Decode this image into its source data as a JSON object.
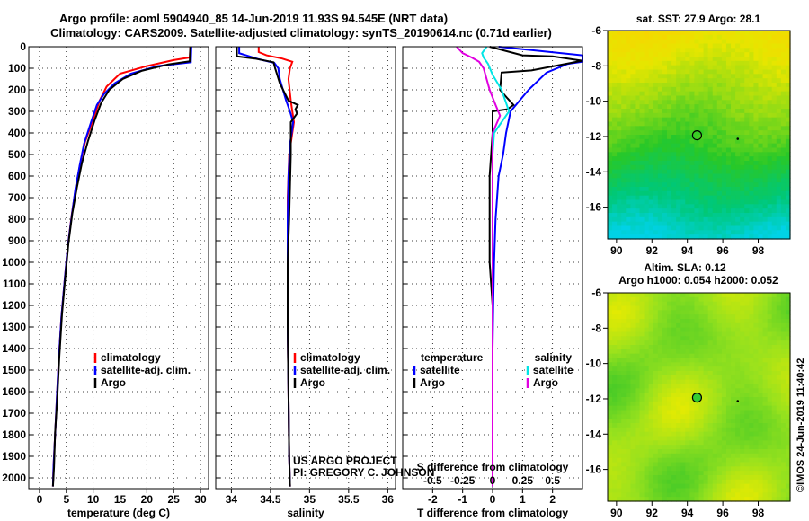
{
  "header": {
    "line1": "Argo profile: aoml 5904940_85 14-Jun-2019 11.93S 94.545E (NRT data)",
    "line2": "Climatology: CARS2009. Satellite-adjusted climatology: synTS_20190614.nc (0.71d earlier)"
  },
  "colors": {
    "climatology": "#ff0000",
    "satellite": "#0000ff",
    "argo": "#000000",
    "salinity_satellite": "#00e5e5",
    "salinity_argo": "#e000e0"
  },
  "pressure_axis": {
    "min": 0,
    "max": 2050,
    "ticks": [
      0,
      100,
      200,
      300,
      400,
      500,
      600,
      700,
      800,
      900,
      1000,
      1100,
      1200,
      1300,
      1400,
      1500,
      1600,
      1700,
      1800,
      1900,
      2000
    ]
  },
  "chart_data": [
    {
      "id": "temperature",
      "type": "line",
      "xlabel": "temperature (deg C)",
      "xlim": [
        -2,
        31.5
      ],
      "xticks": [
        0,
        5,
        10,
        15,
        20,
        25,
        30
      ],
      "ylim": [
        0,
        2050
      ],
      "series": [
        {
          "name": "climatology",
          "color_key": "climatology",
          "x": [
            28.1,
            28.0,
            25,
            20,
            15,
            12.5,
            11.2,
            10.0,
            8.5,
            7.6,
            6.8,
            6.0,
            5.3,
            4.7,
            4.1,
            3.6,
            3.2,
            2.9,
            2.6,
            2.5
          ],
          "y": [
            0,
            50,
            62,
            90,
            125,
            185,
            250,
            340,
            440,
            540,
            650,
            780,
            920,
            1080,
            1250,
            1450,
            1650,
            1800,
            1950,
            2040
          ]
        },
        {
          "name": "satellite-adj. clim.",
          "color_key": "satellite",
          "x": [
            28.3,
            28.2,
            22,
            17,
            14,
            12,
            10.7,
            9.6,
            8.3,
            7.5,
            6.7,
            6.0,
            5.3,
            4.7,
            4.1,
            3.6,
            3.2,
            2.9,
            2.6,
            2.5
          ],
          "y": [
            0,
            72,
            90,
            125,
            170,
            220,
            270,
            350,
            450,
            550,
            660,
            785,
            920,
            1080,
            1250,
            1450,
            1650,
            1800,
            1950,
            2040
          ]
        },
        {
          "name": "Argo",
          "color_key": "argo",
          "x": [
            28.1,
            28.0,
            24,
            19,
            15.5,
            13,
            11.5,
            10.3,
            9.0,
            7.9,
            7.0,
            6.1,
            5.4,
            4.8,
            4.2,
            3.7,
            3.3,
            2.9,
            2.7,
            2.5
          ],
          "y": [
            0,
            68,
            82,
            112,
            150,
            200,
            260,
            340,
            440,
            540,
            650,
            775,
            910,
            1070,
            1240,
            1440,
            1640,
            1790,
            1950,
            2040
          ]
        }
      ],
      "legend": [
        "climatology",
        "satellite-adj. clim.",
        "Argo"
      ]
    },
    {
      "id": "salinity",
      "type": "line",
      "xlabel": "salinity",
      "xlim": [
        33.8,
        36.1
      ],
      "xticks": [
        34,
        34.5,
        35,
        35.5,
        36
      ],
      "xtick_labels": [
        "34",
        "34.5",
        "35",
        "35.5",
        "36"
      ],
      "ylim": [
        0,
        2050
      ],
      "series": [
        {
          "name": "climatology",
          "color_key": "climatology",
          "x": [
            34.35,
            34.35,
            34.45,
            34.65,
            34.78,
            34.75,
            34.73,
            34.76,
            34.78,
            34.8,
            34.78,
            34.74,
            34.72,
            34.72,
            34.72,
            34.73,
            34.74,
            34.75
          ],
          "y": [
            0,
            25,
            40,
            55,
            70,
            100,
            150,
            250,
            300,
            350,
            400,
            500,
            700,
            1000,
            1300,
            1600,
            1900,
            2040
          ]
        },
        {
          "name": "satellite-adj. clim.",
          "color_key": "satellite",
          "x": [
            34.1,
            34.1,
            34.35,
            34.55,
            34.6,
            34.62,
            34.7,
            34.75,
            34.79,
            34.78,
            34.75,
            34.73,
            34.72,
            34.72,
            34.72,
            34.73,
            34.74,
            34.75
          ],
          "y": [
            0,
            30,
            58,
            75,
            100,
            150,
            250,
            300,
            350,
            380,
            450,
            600,
            800,
            1000,
            1300,
            1600,
            1900,
            2040
          ]
        },
        {
          "name": "Argo",
          "color_key": "argo",
          "x": [
            34.07,
            34.07,
            34.3,
            34.54,
            34.56,
            34.62,
            34.73,
            34.85,
            34.82,
            34.84,
            34.76,
            34.76,
            34.74,
            34.72,
            34.72,
            34.73,
            34.74,
            34.75
          ],
          "y": [
            0,
            45,
            55,
            72,
            100,
            170,
            250,
            270,
            290,
            310,
            350,
            500,
            800,
            1000,
            1300,
            1600,
            1900,
            2040
          ]
        }
      ],
      "legend": [
        "climatology",
        "satellite-adj. clim.",
        "Argo"
      ]
    },
    {
      "id": "differences",
      "type": "line",
      "xlabel": "T difference from climatology",
      "xlabel_top": "S difference from climatology",
      "xlim": [
        -3,
        3
      ],
      "xticks": [
        -2,
        -1,
        0,
        1,
        2
      ],
      "xtick_labels": [
        "-2",
        "-1",
        "0",
        "1",
        "2"
      ],
      "top_ticks": [
        -0.5,
        -0.25,
        0,
        0.25,
        0.5
      ],
      "top_tick_labels": [
        "-0.5",
        "-0.25",
        "0",
        "0.25",
        "0.5"
      ],
      "top_scale": 4,
      "ylim": [
        0,
        2050
      ],
      "series": [
        {
          "name": "temperature satellite",
          "color_key": "satellite",
          "x": [
            0.2,
            3.0,
            3.0,
            3.0,
            2.5,
            1.8,
            1.2,
            0.6,
            0.45,
            0.35,
            0.2,
            0.1,
            0.05,
            0.02,
            0.0,
            0.0,
            0.0,
            0.0
          ],
          "y": [
            0,
            40,
            60,
            70,
            80,
            120,
            200,
            300,
            400,
            500,
            600,
            800,
            1000,
            1200,
            1400,
            1600,
            1800,
            2040
          ]
        },
        {
          "name": "temperature Argo",
          "color_key": "argo",
          "x": [
            -0.1,
            1.0,
            2.0,
            3.0,
            1.3,
            0.3,
            0.25,
            0.5,
            0.7,
            0.5,
            0.0,
            0.0,
            -0.1,
            -0.1,
            0.0,
            0.0,
            0.0,
            0.0,
            0.0
          ],
          "y": [
            0,
            40,
            45,
            65,
            110,
            120,
            200,
            240,
            270,
            290,
            300,
            400,
            600,
            1000,
            1200,
            1400,
            1600,
            1800,
            2040
          ]
        },
        {
          "name": "salinity satellite",
          "color_key": "salinity_satellite",
          "x": [
            -0.2,
            -0.35,
            -0.3,
            -0.15,
            0.0,
            0.3,
            0.55,
            0.3,
            0.05,
            0.0,
            0.0,
            0.0,
            0.0,
            0.0,
            0.0
          ],
          "y": [
            0,
            30,
            50,
            80,
            130,
            200,
            300,
            350,
            400,
            500,
            800,
            1100,
            1400,
            1700,
            2040
          ]
        },
        {
          "name": "salinity Argo",
          "color_key": "salinity_argo",
          "x": [
            -1.2,
            -1.0,
            -0.7,
            -0.45,
            -0.3,
            -0.1,
            0.1,
            0.25,
            0.0,
            0.0,
            0.0,
            0.0,
            0.0,
            0.0
          ],
          "y": [
            0,
            30,
            50,
            70,
            100,
            200,
            270,
            320,
            400,
            600,
            900,
            1300,
            1700,
            2040
          ]
        }
      ],
      "legend_temperature_title": "temperature",
      "legend_salinity_title": "salinity",
      "legend_temperature": [
        "satellite",
        "Argo"
      ],
      "legend_salinity": [
        "satellite",
        "Argo"
      ]
    },
    {
      "id": "sst_map",
      "type": "heatmap",
      "title": "sat. SST: 27.9 Argo: 28.1",
      "xlim": [
        89.5,
        99.8
      ],
      "ylim": [
        -17.8,
        -6
      ],
      "xticks": [
        90,
        92,
        94,
        96,
        98
      ],
      "yticks": [
        -6,
        -8,
        -10,
        -12,
        -14,
        -16
      ],
      "profile_location": {
        "lon": 94.545,
        "lat": -11.93
      }
    },
    {
      "id": "sla_map",
      "type": "heatmap",
      "title_line1": "Altim. SLA: 0.12",
      "title_line2": "Argo h1000: 0.054 h2000: 0.052",
      "xlim": [
        89.5,
        99.8
      ],
      "ylim": [
        -17.8,
        -6
      ],
      "xticks": [
        90,
        92,
        94,
        96,
        98
      ],
      "yticks": [
        -6,
        -8,
        -10,
        -12,
        -14,
        -16
      ],
      "profile_location": {
        "lon": 94.545,
        "lat": -11.93
      }
    }
  ],
  "footer": {
    "project": "US ARGO PROJECT",
    "pi": "PI: GREGORY C. JOHNSON",
    "credit": "©IMOS 24-Jun-2019 11:40:42"
  }
}
